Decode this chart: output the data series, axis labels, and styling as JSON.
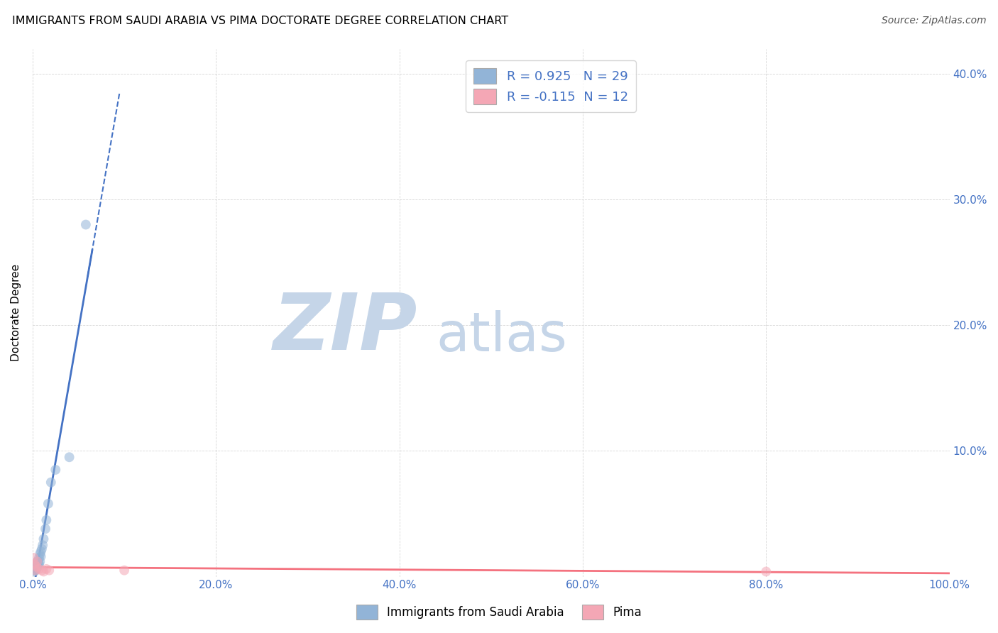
{
  "title": "IMMIGRANTS FROM SAUDI ARABIA VS PIMA DOCTORATE DEGREE CORRELATION CHART",
  "source": "Source: ZipAtlas.com",
  "ylabel": "Doctorate Degree",
  "xlim": [
    0.0,
    1.0
  ],
  "ylim": [
    0.0,
    0.42
  ],
  "xticks": [
    0.0,
    0.2,
    0.4,
    0.6,
    0.8,
    1.0
  ],
  "xtick_labels": [
    "0.0%",
    "20.0%",
    "40.0%",
    "60.0%",
    "80.0%",
    "100.0%"
  ],
  "yticks": [
    0.0,
    0.1,
    0.2,
    0.3,
    0.4
  ],
  "ytick_labels": [
    "",
    "10.0%",
    "20.0%",
    "30.0%",
    "40.0%"
  ],
  "blue_color": "#92B4D7",
  "pink_color": "#F4A7B5",
  "line_blue": "#4472C4",
  "line_pink": "#F4727F",
  "r_blue": 0.925,
  "n_blue": 29,
  "r_pink": -0.115,
  "n_pink": 12,
  "blue_scatter_x": [
    0.001,
    0.002,
    0.002,
    0.003,
    0.003,
    0.003,
    0.004,
    0.004,
    0.005,
    0.005,
    0.005,
    0.006,
    0.006,
    0.007,
    0.007,
    0.008,
    0.008,
    0.009,
    0.009,
    0.01,
    0.011,
    0.012,
    0.014,
    0.015,
    0.017,
    0.02,
    0.025,
    0.04,
    0.058
  ],
  "blue_scatter_y": [
    0.005,
    0.004,
    0.006,
    0.005,
    0.007,
    0.008,
    0.006,
    0.009,
    0.007,
    0.01,
    0.012,
    0.009,
    0.012,
    0.01,
    0.015,
    0.012,
    0.018,
    0.016,
    0.02,
    0.022,
    0.025,
    0.03,
    0.038,
    0.045,
    0.058,
    0.075,
    0.085,
    0.095,
    0.28
  ],
  "pink_scatter_x": [
    0.001,
    0.002,
    0.003,
    0.004,
    0.005,
    0.007,
    0.01,
    0.012,
    0.015,
    0.018,
    0.1,
    0.8
  ],
  "pink_scatter_y": [
    0.015,
    0.01,
    0.005,
    0.008,
    0.012,
    0.006,
    0.005,
    0.004,
    0.006,
    0.005,
    0.005,
    0.004
  ],
  "title_fontsize": 11.5,
  "axis_label_fontsize": 11,
  "tick_fontsize": 11,
  "source_fontsize": 10,
  "scatter_size": 100,
  "scatter_alpha": 0.55,
  "watermark_zip_color": "#C5D5E8",
  "watermark_atlas_color": "#C5D5E8",
  "watermark_fontsize_zip": 80,
  "watermark_fontsize_atlas": 55
}
